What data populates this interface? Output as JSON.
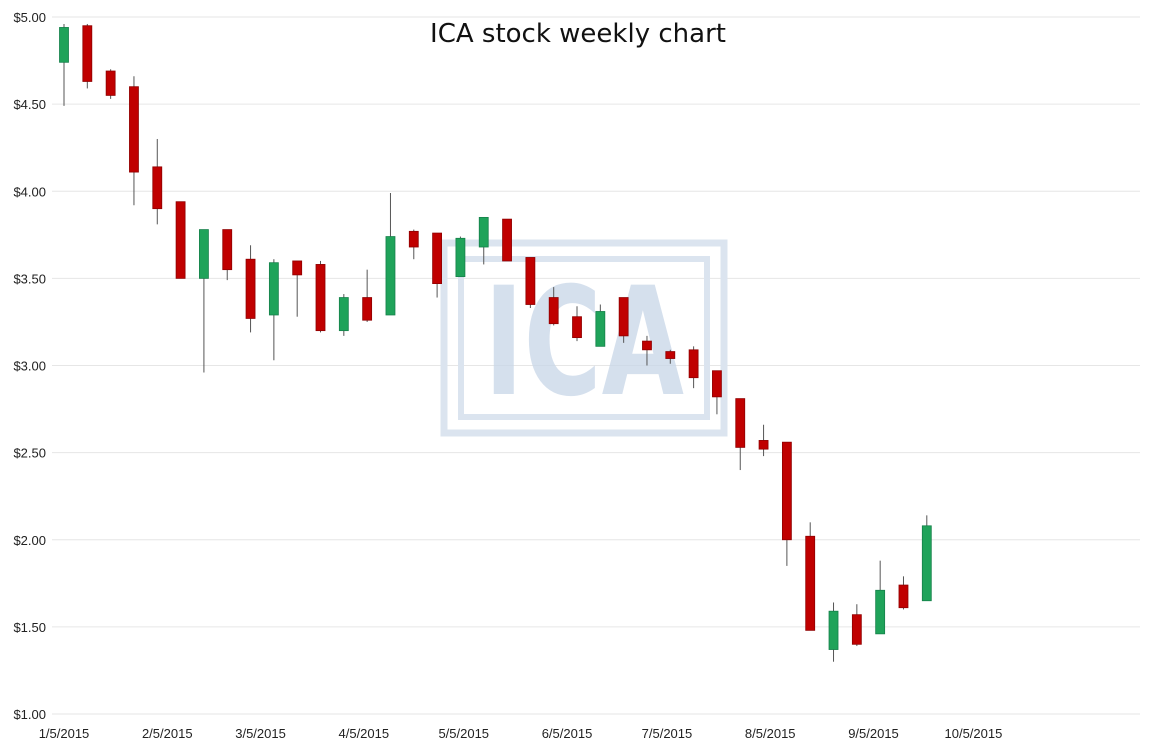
{
  "chart_data": {
    "type": "candlestick",
    "title": "ICA stock weekly chart",
    "xlabel": "",
    "ylabel": "",
    "ylim": [
      1.0,
      5.0
    ],
    "y_ticks": [
      "$5.00",
      "$4.50",
      "$4.00",
      "$3.50",
      "$3.00",
      "$2.50",
      "$2.00",
      "$1.50",
      "$1.00"
    ],
    "y_tick_values": [
      5.0,
      4.5,
      4.0,
      3.5,
      3.0,
      2.5,
      2.0,
      1.5,
      1.0
    ],
    "x_ticks": [
      "1/5/2015",
      "2/5/2015",
      "3/5/2015",
      "4/5/2015",
      "5/5/2015",
      "6/5/2015",
      "7/5/2015",
      "8/5/2015",
      "9/5/2015",
      "10/5/2015"
    ],
    "x_tick_dates": [
      "2015-01-05",
      "2015-02-05",
      "2015-03-05",
      "2015-04-05",
      "2015-05-05",
      "2015-06-05",
      "2015-07-05",
      "2015-08-05",
      "2015-09-05",
      "2015-10-05"
    ],
    "xlim": [
      "2015-01-05",
      "2015-11-24"
    ],
    "grid": "horizontal",
    "watermark": "ICA",
    "colors": {
      "up": "#1fa35a",
      "down": "#c00000",
      "wick": "#555555",
      "grid": "#e6e6e6",
      "watermark": "#c8d6e8"
    },
    "candles": [
      {
        "date": "2015-01-05",
        "open": 4.74,
        "high": 4.96,
        "low": 4.49,
        "close": 4.94
      },
      {
        "date": "2015-01-12",
        "open": 4.95,
        "high": 4.96,
        "low": 4.59,
        "close": 4.63
      },
      {
        "date": "2015-01-19",
        "open": 4.69,
        "high": 4.7,
        "low": 4.53,
        "close": 4.55
      },
      {
        "date": "2015-01-26",
        "open": 4.6,
        "high": 4.66,
        "low": 3.92,
        "close": 4.11
      },
      {
        "date": "2015-02-02",
        "open": 4.14,
        "high": 4.3,
        "low": 3.81,
        "close": 3.9
      },
      {
        "date": "2015-02-09",
        "open": 3.94,
        "high": 3.94,
        "low": 3.5,
        "close": 3.5
      },
      {
        "date": "2015-02-16",
        "open": 3.5,
        "high": 3.78,
        "low": 2.96,
        "close": 3.78
      },
      {
        "date": "2015-02-23",
        "open": 3.78,
        "high": 3.78,
        "low": 3.49,
        "close": 3.55
      },
      {
        "date": "2015-03-02",
        "open": 3.61,
        "high": 3.69,
        "low": 3.19,
        "close": 3.27
      },
      {
        "date": "2015-03-09",
        "open": 3.29,
        "high": 3.61,
        "low": 3.03,
        "close": 3.59
      },
      {
        "date": "2015-03-16",
        "open": 3.6,
        "high": 3.6,
        "low": 3.28,
        "close": 3.52
      },
      {
        "date": "2015-03-23",
        "open": 3.58,
        "high": 3.6,
        "low": 3.19,
        "close": 3.2
      },
      {
        "date": "2015-03-30",
        "open": 3.2,
        "high": 3.41,
        "low": 3.17,
        "close": 3.39
      },
      {
        "date": "2015-04-06",
        "open": 3.39,
        "high": 3.55,
        "low": 3.25,
        "close": 3.26
      },
      {
        "date": "2015-04-13",
        "open": 3.29,
        "high": 3.99,
        "low": 3.29,
        "close": 3.74
      },
      {
        "date": "2015-04-20",
        "open": 3.77,
        "high": 3.78,
        "low": 3.61,
        "close": 3.68
      },
      {
        "date": "2015-04-27",
        "open": 3.76,
        "high": 3.76,
        "low": 3.39,
        "close": 3.47
      },
      {
        "date": "2015-05-04",
        "open": 3.51,
        "high": 3.74,
        "low": 3.51,
        "close": 3.73
      },
      {
        "date": "2015-05-11",
        "open": 3.68,
        "high": 3.85,
        "low": 3.58,
        "close": 3.85
      },
      {
        "date": "2015-05-18",
        "open": 3.84,
        "high": 3.84,
        "low": 3.6,
        "close": 3.6
      },
      {
        "date": "2015-05-25",
        "open": 3.62,
        "high": 3.62,
        "low": 3.33,
        "close": 3.35
      },
      {
        "date": "2015-06-01",
        "open": 3.39,
        "high": 3.45,
        "low": 3.23,
        "close": 3.24
      },
      {
        "date": "2015-06-08",
        "open": 3.28,
        "high": 3.34,
        "low": 3.14,
        "close": 3.16
      },
      {
        "date": "2015-06-15",
        "open": 3.11,
        "high": 3.35,
        "low": 3.11,
        "close": 3.31
      },
      {
        "date": "2015-06-22",
        "open": 3.39,
        "high": 3.39,
        "low": 3.13,
        "close": 3.17
      },
      {
        "date": "2015-06-29",
        "open": 3.14,
        "high": 3.17,
        "low": 3.0,
        "close": 3.09
      },
      {
        "date": "2015-07-06",
        "open": 3.08,
        "high": 3.09,
        "low": 3.01,
        "close": 3.04
      },
      {
        "date": "2015-07-13",
        "open": 3.09,
        "high": 3.11,
        "low": 2.87,
        "close": 2.93
      },
      {
        "date": "2015-07-20",
        "open": 2.97,
        "high": 2.97,
        "low": 2.72,
        "close": 2.82
      },
      {
        "date": "2015-07-27",
        "open": 2.81,
        "high": 2.81,
        "low": 2.4,
        "close": 2.53
      },
      {
        "date": "2015-08-03",
        "open": 2.57,
        "high": 2.66,
        "low": 2.48,
        "close": 2.52
      },
      {
        "date": "2015-08-10",
        "open": 2.56,
        "high": 2.56,
        "low": 1.85,
        "close": 2.0
      },
      {
        "date": "2015-08-17",
        "open": 2.02,
        "high": 2.1,
        "low": 1.48,
        "close": 1.48
      },
      {
        "date": "2015-08-24",
        "open": 1.37,
        "high": 1.64,
        "low": 1.3,
        "close": 1.59
      },
      {
        "date": "2015-08-31",
        "open": 1.57,
        "high": 1.63,
        "low": 1.39,
        "close": 1.4
      },
      {
        "date": "2015-09-07",
        "open": 1.46,
        "high": 1.88,
        "low": 1.46,
        "close": 1.71
      },
      {
        "date": "2015-09-14",
        "open": 1.74,
        "high": 1.79,
        "low": 1.6,
        "close": 1.61
      },
      {
        "date": "2015-09-21",
        "open": 1.65,
        "high": 2.14,
        "low": 1.65,
        "close": 2.08
      }
    ]
  }
}
